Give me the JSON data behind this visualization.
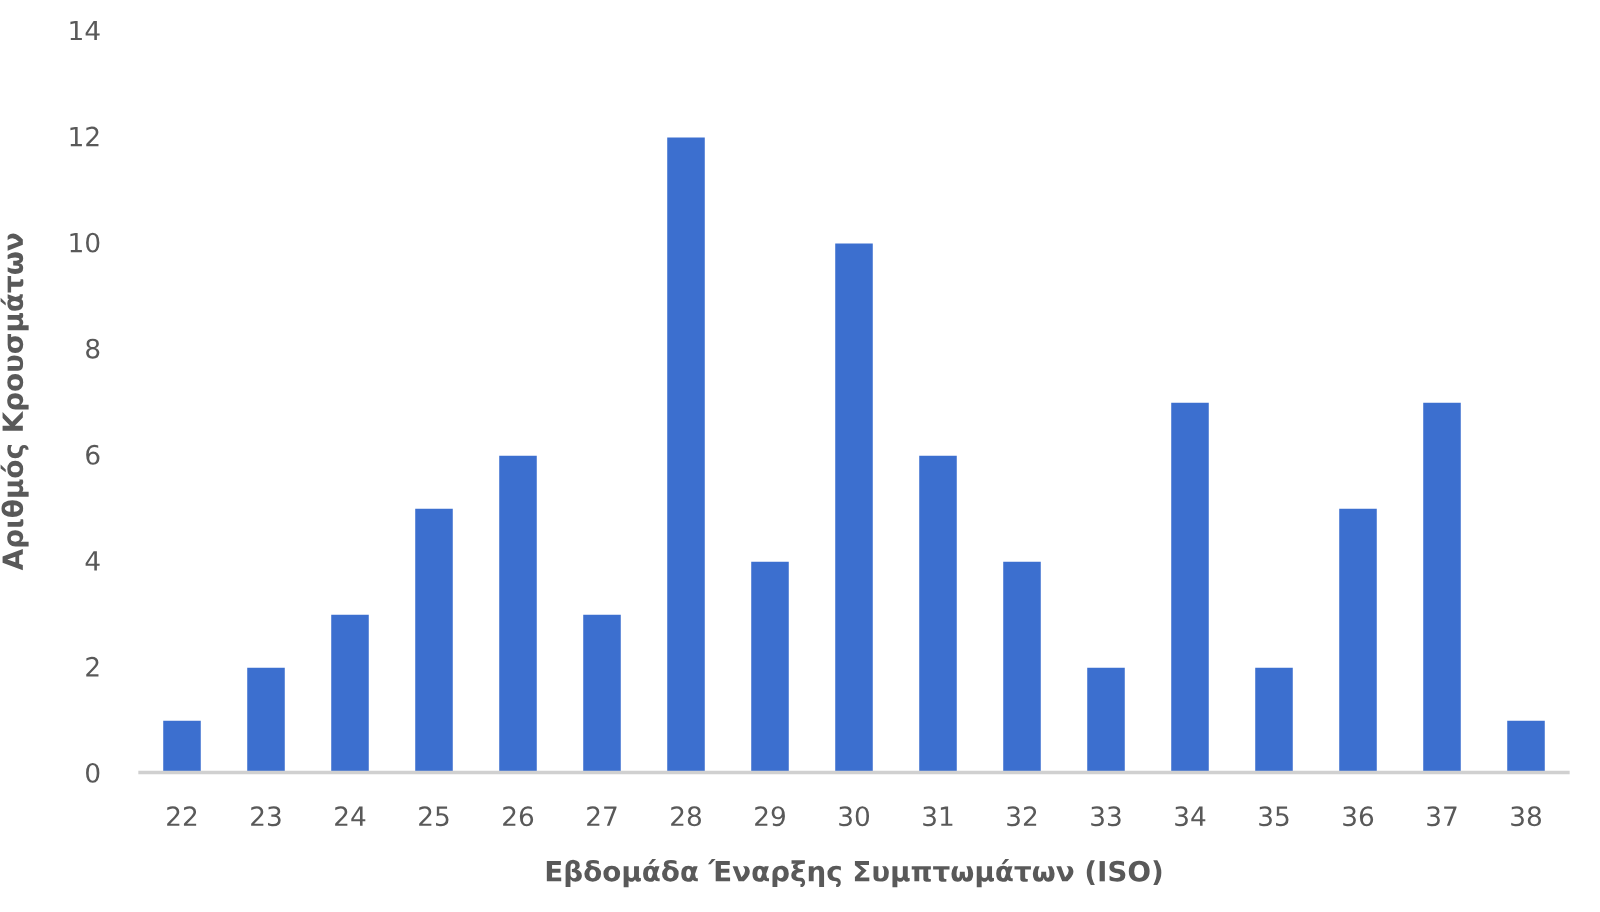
{
  "chart_data": {
    "type": "bar",
    "xlabel": "Εβδομάδα Έναρξης Συμπτωμάτων (ISO)",
    "ylabel": "Αριθμός Κρουσμάτων",
    "categories": [
      "22",
      "23",
      "24",
      "25",
      "26",
      "27",
      "28",
      "29",
      "30",
      "31",
      "32",
      "33",
      "34",
      "35",
      "36",
      "37",
      "38"
    ],
    "values": [
      1,
      2,
      3,
      5,
      6,
      3,
      12,
      4,
      10,
      6,
      4,
      2,
      7,
      2,
      5,
      7,
      1
    ],
    "color": "#3c6fcf",
    "ylim": [
      0,
      14
    ],
    "yticks": [
      0,
      2,
      4,
      6,
      8,
      10,
      12,
      14
    ]
  }
}
